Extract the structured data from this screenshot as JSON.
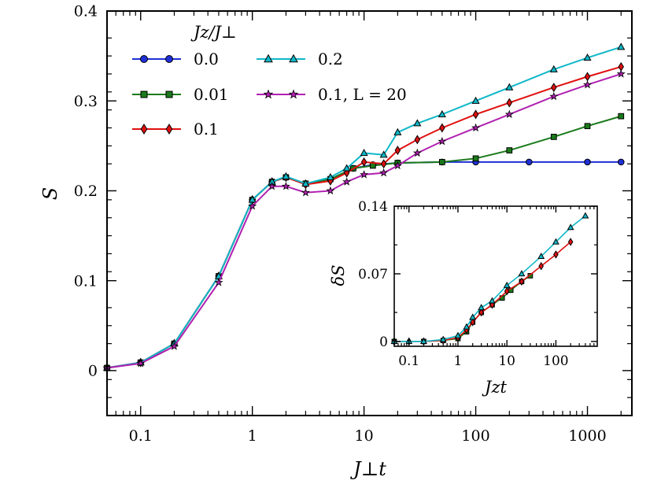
{
  "chart_data": [
    {
      "type": "line",
      "id": "main",
      "xscale": "log",
      "xlim": [
        0.05,
        2500
      ],
      "ylim": [
        -0.05,
        0.4
      ],
      "xticks": [
        0.1,
        1,
        10,
        100,
        1000
      ],
      "xtick_labels": [
        "0.1",
        "1",
        "10",
        "100",
        "1000"
      ],
      "yticks": [
        0,
        0.1,
        0.2,
        0.3,
        0.4
      ],
      "ytick_labels": [
        "0",
        "0.1",
        "0.2",
        "0.3",
        "0.4"
      ],
      "xlabel": "J⊥t",
      "ylabel": "S",
      "legend_title": "Jz/J⊥",
      "legend_position": "top-left",
      "series": [
        {
          "name": "0.0",
          "color": "#1f2fd6",
          "marker": "circle",
          "x": [
            0.05,
            0.1,
            0.2,
            0.5,
            1,
            1.5,
            2,
            3,
            5,
            8,
            12,
            20,
            50,
            100,
            300,
            1000,
            2000
          ],
          "y": [
            0.003,
            0.009,
            0.03,
            0.105,
            0.19,
            0.21,
            0.215,
            0.208,
            0.213,
            0.225,
            0.229,
            0.231,
            0.232,
            0.232,
            0.232,
            0.232,
            0.232
          ]
        },
        {
          "name": "0.01",
          "color": "#1a7a1a",
          "marker": "square",
          "x": [
            0.05,
            0.1,
            0.2,
            0.5,
            1,
            1.5,
            2,
            3,
            5,
            8,
            12,
            20,
            50,
            100,
            200,
            500,
            1000,
            2000
          ],
          "y": [
            0.003,
            0.009,
            0.03,
            0.105,
            0.19,
            0.21,
            0.215,
            0.208,
            0.213,
            0.225,
            0.228,
            0.231,
            0.232,
            0.236,
            0.245,
            0.26,
            0.272,
            0.283
          ]
        },
        {
          "name": "0.1",
          "color": "#e01010",
          "marker": "diamond",
          "x": [
            0.05,
            0.1,
            0.2,
            0.5,
            1,
            1.5,
            2,
            3,
            5,
            7,
            10,
            15,
            20,
            30,
            50,
            100,
            200,
            500,
            1000,
            2000
          ],
          "y": [
            0.003,
            0.009,
            0.03,
            0.105,
            0.19,
            0.21,
            0.215,
            0.207,
            0.211,
            0.22,
            0.232,
            0.23,
            0.245,
            0.257,
            0.27,
            0.285,
            0.298,
            0.315,
            0.327,
            0.338
          ]
        },
        {
          "name": "0.2",
          "color": "#10b8c8",
          "marker": "triangle",
          "x": [
            0.05,
            0.1,
            0.2,
            0.5,
            1,
            1.5,
            2,
            3,
            5,
            7,
            10,
            15,
            20,
            30,
            50,
            100,
            200,
            500,
            1000,
            2000
          ],
          "y": [
            0.003,
            0.009,
            0.03,
            0.105,
            0.19,
            0.21,
            0.216,
            0.208,
            0.215,
            0.225,
            0.242,
            0.24,
            0.265,
            0.275,
            0.285,
            0.3,
            0.315,
            0.335,
            0.348,
            0.36
          ]
        },
        {
          "name": "0.1, L = 20",
          "color": "#b020b0",
          "marker": "star",
          "x": [
            0.05,
            0.1,
            0.2,
            0.5,
            1,
            1.5,
            2,
            3,
            5,
            7,
            10,
            15,
            20,
            30,
            50,
            100,
            200,
            500,
            1000,
            2000
          ],
          "y": [
            0.003,
            0.008,
            0.027,
            0.098,
            0.183,
            0.205,
            0.205,
            0.198,
            0.2,
            0.21,
            0.218,
            0.22,
            0.228,
            0.242,
            0.255,
            0.27,
            0.285,
            0.305,
            0.318,
            0.33
          ]
        }
      ]
    },
    {
      "type": "line",
      "id": "inset",
      "xscale": "log",
      "xlim": [
        0.05,
        700
      ],
      "ylim": [
        -0.005,
        0.14
      ],
      "xticks": [
        0.1,
        1,
        10,
        100
      ],
      "xtick_labels": [
        "0.1",
        "1",
        "10",
        "100"
      ],
      "yticks": [
        0,
        0.07,
        0.14
      ],
      "ytick_labels": [
        "0",
        "0.07",
        "0.14"
      ],
      "xlabel": "Jzt",
      "ylabel": "δS",
      "position": "lower-right inset",
      "series": [
        {
          "name": "0.01",
          "color": "#1a7a1a",
          "marker": "square",
          "x": [
            0.05,
            0.2,
            0.5,
            1,
            1.5,
            2,
            3,
            5,
            8,
            12,
            20,
            30
          ],
          "y": [
            0,
            0,
            0.001,
            0.003,
            0.01,
            0.02,
            0.03,
            0.038,
            0.045,
            0.053,
            0.062,
            0.068
          ]
        },
        {
          "name": "0.1",
          "color": "#e01010",
          "marker": "diamond",
          "x": [
            0.05,
            0.1,
            0.2,
            0.5,
            1,
            1.5,
            2,
            3,
            5,
            10,
            20,
            50,
            100,
            200
          ],
          "y": [
            0,
            0,
            0,
            0.001,
            0.004,
            0.012,
            0.02,
            0.03,
            0.038,
            0.052,
            0.062,
            0.078,
            0.09,
            0.103
          ]
        },
        {
          "name": "0.2",
          "color": "#10b8c8",
          "marker": "triangle",
          "x": [
            0.05,
            0.1,
            0.2,
            0.5,
            1,
            1.5,
            2,
            3,
            5,
            10,
            20,
            50,
            100,
            200,
            400
          ],
          "y": [
            0,
            0,
            0,
            0.002,
            0.006,
            0.015,
            0.025,
            0.035,
            0.042,
            0.058,
            0.07,
            0.088,
            0.103,
            0.118,
            0.13
          ]
        }
      ]
    }
  ]
}
